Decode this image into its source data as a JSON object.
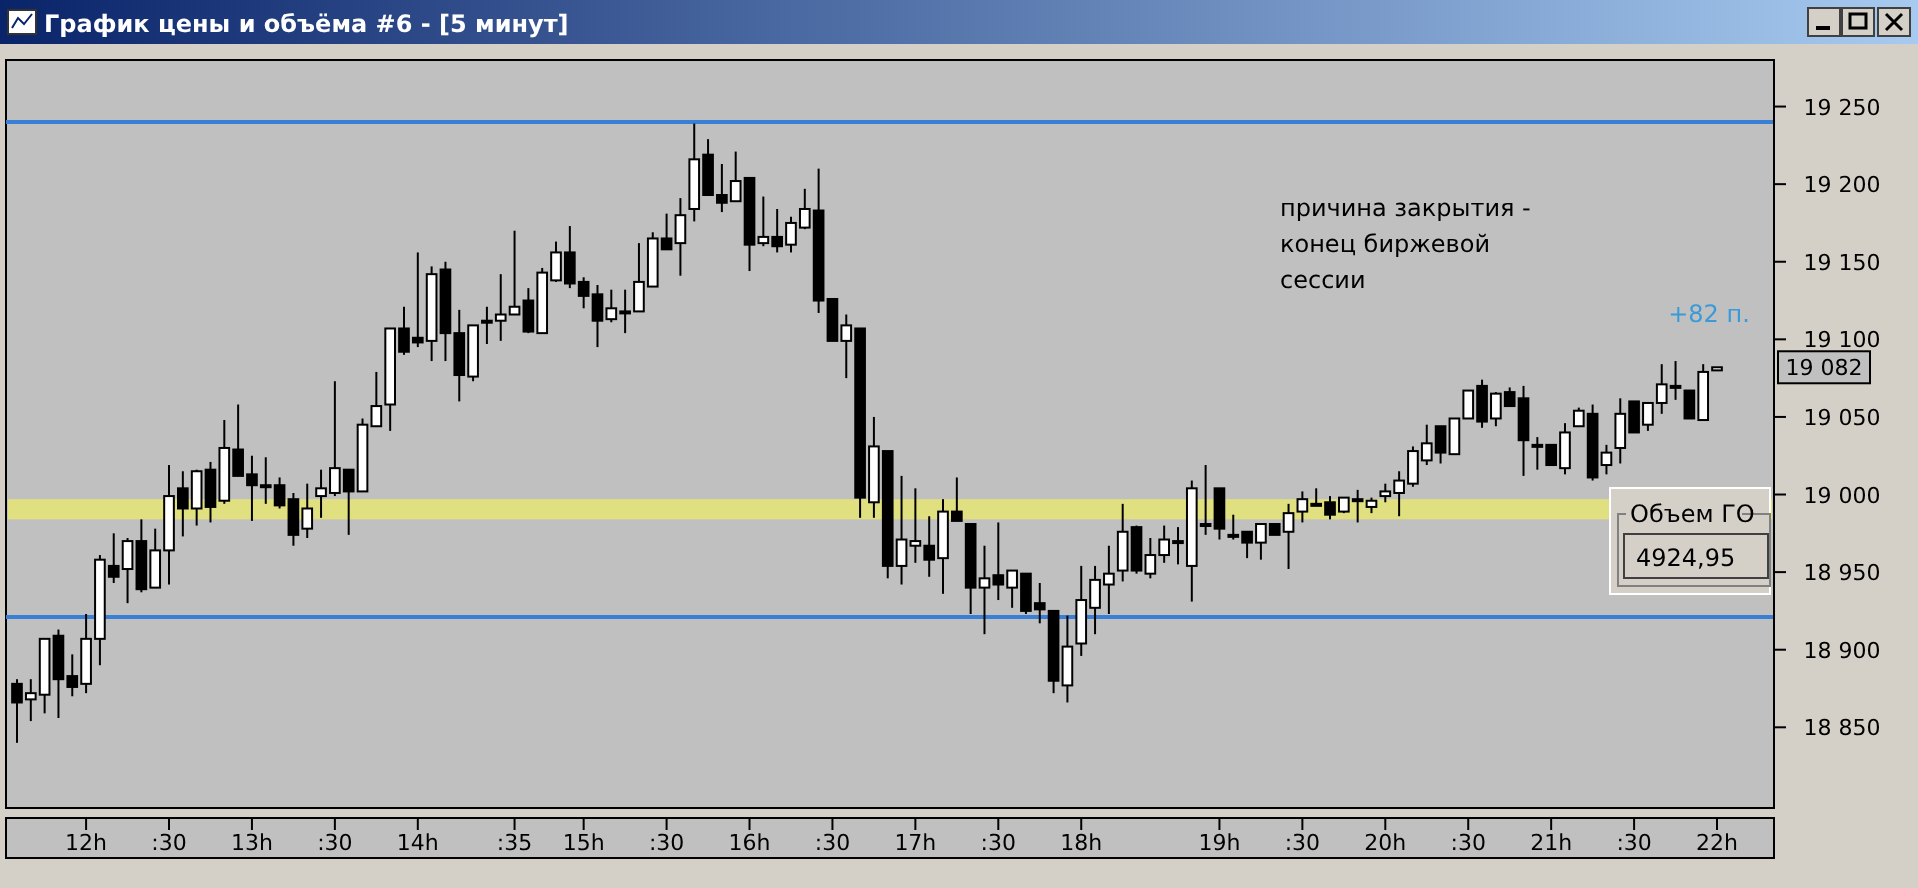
{
  "chart_data": {
    "type": "candlestick",
    "title": "График цены и объёма #6 - [5 минут]",
    "categories": [
      null,
      null,
      null,
      null,
      null,
      "12h",
      null,
      null,
      null,
      null,
      null,
      ":30",
      null,
      null,
      null,
      null,
      null,
      "13h",
      null,
      null,
      null,
      null,
      null,
      ":30",
      null,
      null,
      null,
      null,
      null,
      "14h",
      null,
      null,
      null,
      null,
      null,
      null,
      ":35",
      null,
      null,
      null,
      null,
      "15h",
      null,
      null,
      null,
      null,
      null,
      ":30",
      null,
      null,
      null,
      null,
      null,
      "16h",
      null,
      null,
      null,
      null,
      null,
      ":30",
      null,
      null,
      null,
      null,
      null,
      "17h",
      null,
      null,
      null,
      null,
      null,
      ":30",
      null,
      null,
      null,
      null,
      null,
      "18h",
      null,
      null,
      null,
      null,
      null,
      null,
      null,
      null,
      null,
      "19h",
      null,
      null,
      null,
      null,
      null,
      ":30",
      null,
      null,
      null,
      null,
      null,
      "20h",
      null,
      null,
      null,
      null,
      null,
      ":30",
      null,
      null,
      null,
      null,
      null,
      "21h",
      null,
      null,
      null,
      null,
      null,
      ":30",
      null,
      null,
      null,
      null,
      null,
      "22h"
    ],
    "ohlc": [
      [
        18878,
        18881,
        18840,
        18866
      ],
      [
        18868,
        18881,
        18854,
        18872
      ],
      [
        18871,
        18907,
        18859,
        18907
      ],
      [
        18909,
        18913,
        18856,
        18881
      ],
      [
        18883,
        18897,
        18870,
        18876
      ],
      [
        18878,
        18923,
        18872,
        18907
      ],
      [
        18907,
        18961,
        18890,
        18958
      ],
      [
        18954,
        18975,
        18943,
        18947
      ],
      [
        18952,
        18972,
        18930,
        18970
      ],
      [
        18970,
        18984,
        18937,
        18939
      ],
      [
        18940,
        18978,
        18940,
        18964
      ],
      [
        18964,
        19019,
        18942,
        18999
      ],
      [
        19004,
        19015,
        18973,
        18991
      ],
      [
        18991,
        19016,
        18980,
        19015
      ],
      [
        19016,
        19021,
        18982,
        18992
      ],
      [
        18996,
        19048,
        18994,
        19030
      ],
      [
        19029,
        19058,
        19012,
        19012
      ],
      [
        19013,
        19025,
        18983,
        19006
      ],
      [
        19006,
        19024,
        18994,
        19006
      ],
      [
        19006,
        19011,
        18991,
        18993
      ],
      [
        18997,
        19001,
        18967,
        18974
      ],
      [
        18978,
        19007,
        18972,
        18991
      ],
      [
        18999,
        19016,
        18985,
        19004
      ],
      [
        19001,
        19073,
        18999,
        19017
      ],
      [
        19016,
        19016,
        18974,
        19002
      ],
      [
        19002,
        19049,
        19002,
        19045
      ],
      [
        19044,
        19079,
        19044,
        19057
      ],
      [
        19058,
        19107,
        19041,
        19107
      ],
      [
        19107,
        19121,
        19090,
        19092
      ],
      [
        19101,
        19156,
        19095,
        19098
      ],
      [
        19099,
        19147,
        19086,
        19142
      ],
      [
        19145,
        19150,
        19086,
        19104
      ],
      [
        19104,
        19119,
        19060,
        19077
      ],
      [
        19076,
        19109,
        19073,
        19109
      ],
      [
        19112,
        19121,
        19097,
        19112
      ],
      [
        19112,
        19142,
        19099,
        19116
      ],
      [
        19116,
        19170,
        19116,
        19121
      ],
      [
        19125,
        19133,
        19104,
        19105
      ],
      [
        19104,
        19146,
        19104,
        19143
      ],
      [
        19138,
        19163,
        19137,
        19156
      ],
      [
        19156,
        19173,
        19133,
        19136
      ],
      [
        19137,
        19140,
        19120,
        19128
      ],
      [
        19129,
        19135,
        19095,
        19112
      ],
      [
        19113,
        19132,
        19111,
        19120
      ],
      [
        19118,
        19132,
        19104,
        19118
      ],
      [
        19118,
        19162,
        19118,
        19137
      ],
      [
        19134,
        19169,
        19134,
        19165
      ],
      [
        19165,
        19181,
        19158,
        19158
      ],
      [
        19162,
        19191,
        19141,
        19180
      ],
      [
        19184,
        19239,
        19176,
        19216
      ],
      [
        19219,
        19229,
        19193,
        19193
      ],
      [
        19193,
        19213,
        19182,
        19188
      ],
      [
        19189,
        19221,
        19189,
        19202
      ],
      [
        19204,
        19204,
        19144,
        19161
      ],
      [
        19162,
        19192,
        19160,
        19166
      ],
      [
        19166,
        19184,
        19156,
        19160
      ],
      [
        19161,
        19179,
        19156,
        19175
      ],
      [
        19172,
        19197,
        19171,
        19184
      ],
      [
        19183,
        19210,
        19117,
        19125
      ],
      [
        19126,
        19126,
        19099,
        19099
      ],
      [
        19099,
        19116,
        19075,
        19109
      ],
      [
        19107,
        19107,
        18985,
        18998
      ],
      [
        18995,
        19050,
        18985,
        19031
      ],
      [
        19028,
        19028,
        18946,
        18954
      ],
      [
        18954,
        19012,
        18942,
        18971
      ],
      [
        18967,
        19004,
        18956,
        18970
      ],
      [
        18967,
        18986,
        18947,
        18958
      ],
      [
        18959,
        18997,
        18936,
        18989
      ],
      [
        18989,
        19011,
        18983,
        18983
      ],
      [
        18981,
        18981,
        18923,
        18940
      ],
      [
        18940,
        18967,
        18910,
        18946
      ],
      [
        18948,
        18982,
        18932,
        18942
      ],
      [
        18940,
        18951,
        18927,
        18951
      ],
      [
        18949,
        18949,
        18923,
        18925
      ],
      [
        18930,
        18943,
        18917,
        18926
      ],
      [
        18925,
        18925,
        18872,
        18880
      ],
      [
        18877,
        18922,
        18866,
        18902
      ],
      [
        18904,
        18954,
        18896,
        18932
      ],
      [
        18927,
        18954,
        18910,
        18945
      ],
      [
        18942,
        18967,
        18923,
        18949
      ],
      [
        18951,
        18994,
        18944,
        18976
      ],
      [
        18979,
        18980,
        18949,
        18951
      ],
      [
        18949,
        18972,
        18946,
        18961
      ],
      [
        18961,
        18980,
        18956,
        18971
      ],
      [
        18970,
        18979,
        18955,
        18970
      ],
      [
        18954,
        19009,
        18931,
        19004
      ],
      [
        18981,
        19019,
        18974,
        18981
      ],
      [
        19004,
        19004,
        18971,
        18978
      ],
      [
        18974,
        18987,
        18971,
        18974
      ],
      [
        18976,
        18976,
        18959,
        18969
      ],
      [
        18969,
        18981,
        18958,
        18981
      ],
      [
        18981,
        18981,
        18974,
        18974
      ],
      [
        18976,
        18994,
        18952,
        18988
      ],
      [
        18989,
        19002,
        18982,
        18997
      ],
      [
        18994,
        19004,
        18993,
        18994
      ],
      [
        18995,
        18999,
        18984,
        18987
      ],
      [
        18989,
        18998,
        18988,
        18998
      ],
      [
        18997,
        19003,
        18982,
        18997
      ],
      [
        18992,
        18998,
        18988,
        18996
      ],
      [
        18999,
        19007,
        18995,
        19002
      ],
      [
        19001,
        19015,
        18986,
        19009
      ],
      [
        19007,
        19031,
        19005,
        19028
      ],
      [
        19022,
        19045,
        19019,
        19033
      ],
      [
        19044,
        19044,
        19020,
        19027
      ],
      [
        19026,
        19049,
        19026,
        19049
      ],
      [
        19049,
        19067,
        19049,
        19067
      ],
      [
        19070,
        19074,
        19043,
        19047
      ],
      [
        19049,
        19066,
        19044,
        19065
      ],
      [
        19066,
        19069,
        19057,
        19057
      ],
      [
        19062,
        19070,
        19012,
        19035
      ],
      [
        19032,
        19037,
        19016,
        19032
      ],
      [
        19032,
        19032,
        19019,
        19019
      ],
      [
        19017,
        19046,
        19013,
        19040
      ],
      [
        19044,
        19056,
        19044,
        19054
      ],
      [
        19052,
        19058,
        19009,
        19011
      ],
      [
        19019,
        19032,
        19013,
        19027
      ],
      [
        19030,
        19062,
        19020,
        19052
      ],
      [
        19060,
        19060,
        19040,
        19040
      ],
      [
        19045,
        19059,
        19041,
        19059
      ],
      [
        19059,
        19084,
        19052,
        19071
      ],
      [
        19070,
        19086,
        19061,
        19069
      ],
      [
        19067,
        19067,
        19049,
        19049
      ],
      [
        19048,
        19084,
        19048,
        19079
      ],
      [
        19080,
        19082,
        19080,
        19082
      ]
    ],
    "ylim": [
      18798,
      19280
    ],
    "yticks": [
      {
        "value": 18850,
        "label": "18 850"
      },
      {
        "value": 18900,
        "label": "18 900"
      },
      {
        "value": 18950,
        "label": "18 950"
      },
      {
        "value": 19000,
        "label": "19 000"
      },
      {
        "value": 19050,
        "label": "19 050"
      },
      {
        "value": 19100,
        "label": "19 100"
      },
      {
        "value": 19150,
        "label": "19 150"
      },
      {
        "value": 19200,
        "label": "19 200"
      },
      {
        "value": 19250,
        "label": "19 250"
      }
    ],
    "ref_lines": [
      {
        "axis": "y",
        "value": 19240,
        "color": "#3a7fd6"
      },
      {
        "axis": "y",
        "value": 18921,
        "color": "#3a7fd6"
      }
    ],
    "bands": [
      {
        "axis": "y",
        "from": 18984,
        "to": 18997,
        "color": "#eeee66"
      }
    ],
    "annotations": [
      "причина закрытия -\nконец биржевой\nсессии",
      "+82 п.",
      "19 082",
      "Объем ГО",
      "4924,95"
    ],
    "grid": false
  }
}
